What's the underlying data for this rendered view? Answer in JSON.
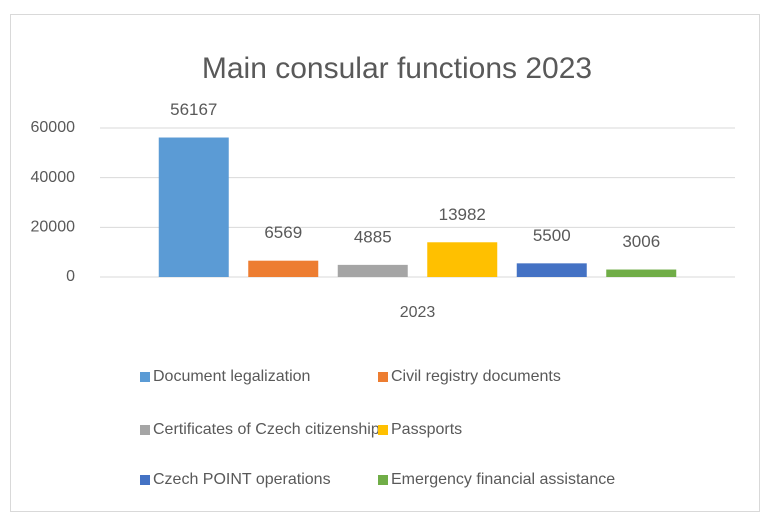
{
  "chart_data": {
    "type": "bar",
    "title": "Main consular functions 2023",
    "categories": [
      "2023"
    ],
    "series": [
      {
        "name": "Document legalization",
        "color": "#5b9bd5",
        "values": [
          56167
        ]
      },
      {
        "name": "Civil registry documents",
        "color": "#ed7d31",
        "values": [
          6569
        ]
      },
      {
        "name": "Certificates of Czech citizenship",
        "color": "#a5a5a5",
        "values": [
          4885
        ]
      },
      {
        "name": "Passports",
        "color": "#ffc000",
        "values": [
          13982
        ]
      },
      {
        "name": "Czech POINT operations",
        "color": "#4472c4",
        "values": [
          5500
        ]
      },
      {
        "name": "Emergency financial assistance",
        "color": "#70ad47",
        "values": [
          3006
        ]
      }
    ],
    "ylim": [
      0,
      60000
    ],
    "yticks": [
      0,
      20000,
      40000,
      60000
    ],
    "grid": true,
    "legend": "bottom"
  }
}
